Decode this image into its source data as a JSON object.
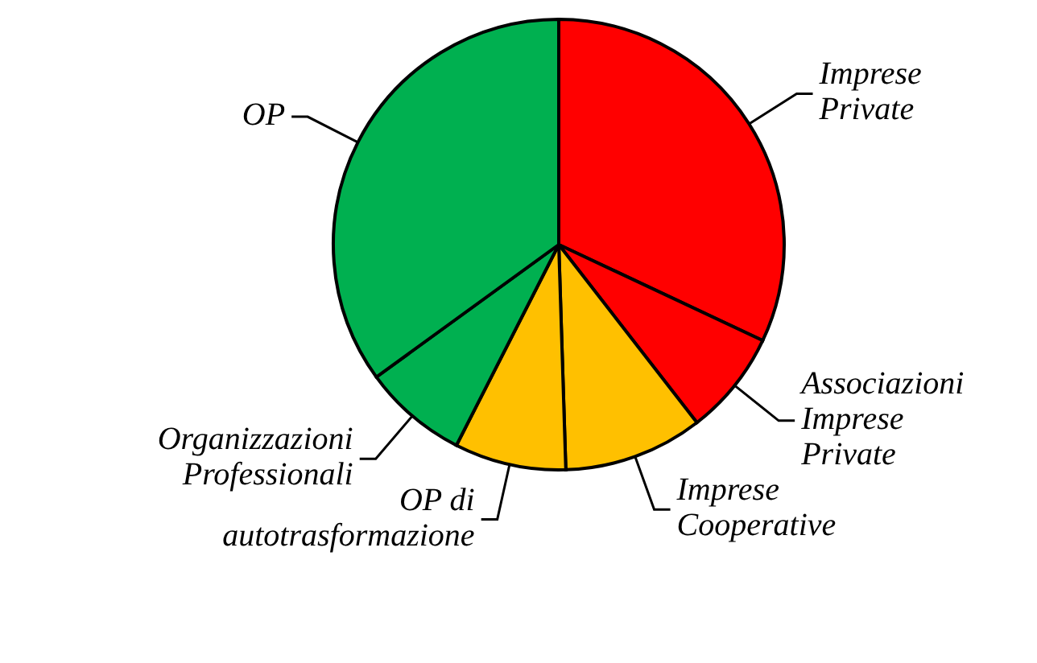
{
  "chart_data": {
    "type": "pie",
    "categories": [
      "Imprese Private",
      "Associazioni Imprese Private",
      "Imprese Cooperative",
      "OP di autotrasformazione",
      "Organizzazioni Professionali",
      "OP"
    ],
    "values": [
      32,
      7.5,
      10,
      8,
      7.5,
      35
    ],
    "colors": [
      "#ff0000",
      "#ff0000",
      "#ffc000",
      "#ffc000",
      "#00b050",
      "#00b050"
    ]
  }
}
